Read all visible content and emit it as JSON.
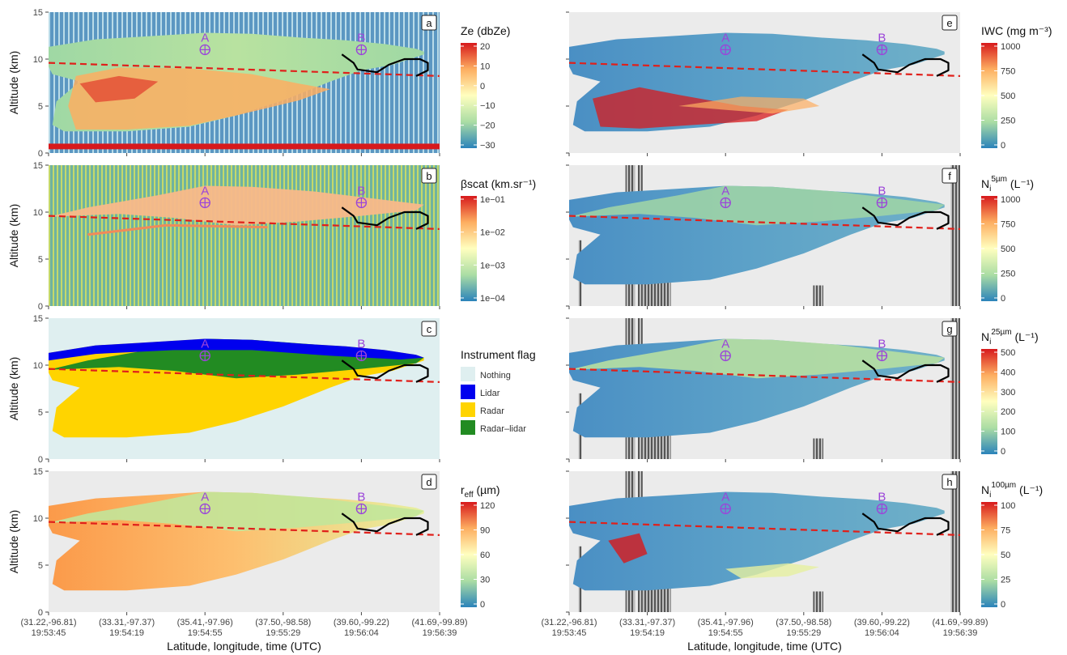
{
  "chart_data": {
    "type": "heatmap",
    "x_ticks": [
      "(31.22,-96.81)\n19:53:45",
      "(33.31,-97.37)\n19:54:19",
      "(35.41,-97.96)\n19:54:55",
      "(37.50,-98.58)\n19:55:29",
      "(39.60,-99.22)\n19:56:04",
      "(41.69,-99.89)\n19:56:39"
    ],
    "xlabel": "Latitude, longitude, time (UTC)",
    "ylabel": "Altitude (km)",
    "ylim": [
      0,
      15
    ],
    "y_ticks": [
      "0",
      "5",
      "10",
      "15"
    ],
    "points": [
      {
        "label": "A",
        "x": 2.0,
        "y": 11
      },
      {
        "label": "B",
        "x": 4.0,
        "y": 11
      }
    ],
    "panels": [
      {
        "label": "a",
        "legend_title": "Ze (dbZe)",
        "legend_ticks": [
          "20",
          "10",
          "0",
          "−10",
          "−20",
          "−30"
        ]
      },
      {
        "label": "b",
        "legend_title": "βscat (km.sr⁻¹)",
        "legend_ticks": [
          "1e−01",
          "1e−02",
          "1e−03",
          "1e−04"
        ]
      },
      {
        "label": "c",
        "legend_title": "Instrument flag",
        "legend_ticks": [
          "Nothing",
          "Lidar",
          "Radar",
          "Radar–lidar"
        ],
        "colors": [
          "#dfeff0",
          "#0000ee",
          "#ffd400",
          "#228b22"
        ]
      },
      {
        "label": "d",
        "legend_title": "r_eff (µm)",
        "legend_ticks": [
          "120",
          "90",
          "60",
          "30",
          "0"
        ]
      },
      {
        "label": "e",
        "legend_title": "IWC (mg m⁻³)",
        "legend_ticks": [
          "1000",
          "750",
          "500",
          "250",
          "0"
        ]
      },
      {
        "label": "f",
        "legend_title": "N_i^5µm (L⁻¹)",
        "legend_ticks": [
          "1000",
          "750",
          "500",
          "250",
          "0"
        ]
      },
      {
        "label": "g",
        "legend_title": "N_i^25µm (L⁻¹)",
        "legend_ticks": [
          "500",
          "400",
          "300",
          "200",
          "100",
          "0"
        ]
      },
      {
        "label": "h",
        "legend_title": "N_i^100µm (L⁻¹)",
        "legend_ticks": [
          "100",
          "75",
          "50",
          "25",
          "0"
        ]
      }
    ],
    "colors": {
      "panel_bg": "#ebebeb",
      "tropopause": "#e0201b",
      "marker": "#9b45d9",
      "track": "#000000"
    }
  }
}
